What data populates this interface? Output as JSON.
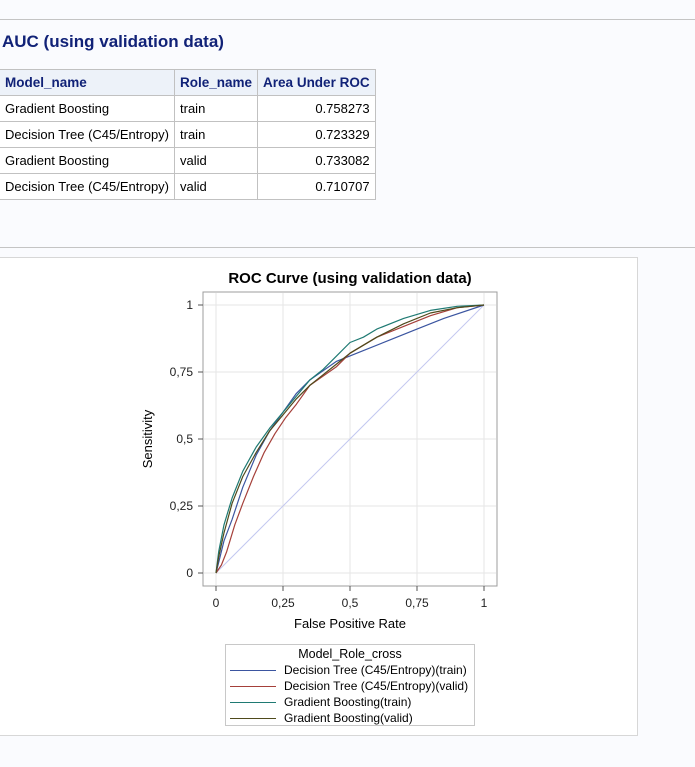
{
  "report": {
    "section_title": "AUC (using validation data)",
    "table": {
      "headers": [
        "Model_name",
        "Role_name",
        "Area Under ROC"
      ],
      "rows": [
        [
          "Gradient Boosting",
          "train",
          "0.758273"
        ],
        [
          "Decision Tree (C45/Entropy)",
          "train",
          "0.723329"
        ],
        [
          "Gradient Boosting",
          "valid",
          "0.733082"
        ],
        [
          "Decision Tree (C45/Entropy)",
          "valid",
          "0.710707"
        ]
      ]
    }
  },
  "chart_data": {
    "type": "line",
    "title": "ROC Curve (using validation data)",
    "xlabel": "False Positive Rate",
    "ylabel": "Sensitivity",
    "xlim": [
      0,
      1
    ],
    "ylim": [
      0,
      1
    ],
    "x_ticks": [
      "0",
      "0,25",
      "0,5",
      "0,75",
      "1"
    ],
    "y_ticks": [
      "0",
      "0,25",
      "0,5",
      "0,75",
      "1"
    ],
    "grid": true,
    "legend_title": "Model_Role_cross",
    "legend_placement": "bottom",
    "reference_line": {
      "x": [
        0,
        1
      ],
      "y": [
        0,
        1
      ],
      "color": "#c3c8f0"
    },
    "series": [
      {
        "name": "Decision Tree (C45/Entropy)(train)",
        "color": "#3b55a0",
        "x": [
          0,
          0.01,
          0.03,
          0.06,
          0.1,
          0.15,
          0.2,
          0.25,
          0.3,
          0.35,
          0.45,
          0.55,
          0.65,
          0.75,
          0.85,
          1
        ],
        "y": [
          0,
          0.04,
          0.12,
          0.2,
          0.32,
          0.44,
          0.53,
          0.6,
          0.67,
          0.72,
          0.79,
          0.83,
          0.87,
          0.91,
          0.95,
          1
        ]
      },
      {
        "name": "Decision Tree (C45/Entropy)(valid)",
        "color": "#a5403a",
        "x": [
          0,
          0.02,
          0.04,
          0.07,
          0.1,
          0.14,
          0.18,
          0.22,
          0.26,
          0.3,
          0.35,
          0.45,
          0.5,
          0.6,
          0.7,
          0.8,
          0.9,
          1
        ],
        "y": [
          0,
          0.03,
          0.08,
          0.18,
          0.26,
          0.36,
          0.45,
          0.52,
          0.58,
          0.63,
          0.7,
          0.77,
          0.82,
          0.88,
          0.92,
          0.96,
          0.99,
          1
        ]
      },
      {
        "name": "Gradient Boosting(train)",
        "color": "#1f7a73",
        "x": [
          0,
          0.01,
          0.03,
          0.06,
          0.1,
          0.15,
          0.2,
          0.25,
          0.3,
          0.35,
          0.4,
          0.45,
          0.5,
          0.55,
          0.6,
          0.7,
          0.8,
          0.9,
          1
        ],
        "y": [
          0,
          0.08,
          0.18,
          0.28,
          0.38,
          0.47,
          0.54,
          0.6,
          0.66,
          0.72,
          0.76,
          0.81,
          0.86,
          0.88,
          0.91,
          0.95,
          0.98,
          0.995,
          1
        ]
      },
      {
        "name": "Gradient Boosting(valid)",
        "color": "#4f4a1c",
        "x": [
          0,
          0.01,
          0.03,
          0.06,
          0.1,
          0.15,
          0.2,
          0.25,
          0.3,
          0.35,
          0.4,
          0.45,
          0.5,
          0.55,
          0.6,
          0.7,
          0.8,
          0.9,
          1
        ],
        "y": [
          0,
          0.06,
          0.15,
          0.26,
          0.36,
          0.45,
          0.53,
          0.59,
          0.65,
          0.7,
          0.74,
          0.78,
          0.82,
          0.85,
          0.88,
          0.93,
          0.97,
          0.99,
          1
        ]
      }
    ]
  }
}
